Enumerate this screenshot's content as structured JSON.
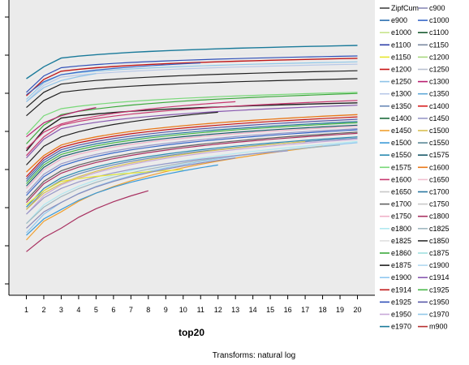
{
  "chart_data": {
    "type": "line",
    "xlabel": "top20",
    "ylabel": "",
    "caption": "Transforms: natural log",
    "x": [
      1,
      2,
      3,
      4,
      5,
      6,
      7,
      8,
      9,
      10,
      11,
      12,
      13,
      14,
      15,
      16,
      17,
      18,
      19,
      20
    ],
    "xlim": [
      0,
      21
    ],
    "ylim": [
      0,
      1
    ],
    "grid": false,
    "legend_position": "right",
    "legend_columns": [
      [
        {
          "name": "ZipfCum",
          "color": "#444444"
        },
        {
          "name": "e900",
          "color": "#2a6fb0"
        },
        {
          "name": "e1000",
          "color": "#c8e48c"
        },
        {
          "name": "e1100",
          "color": "#2d3fa8"
        },
        {
          "name": "e1150",
          "color": "#e6e62e"
        },
        {
          "name": "e1200",
          "color": "#c81414"
        },
        {
          "name": "e1250",
          "color": "#8fc3e8"
        },
        {
          "name": "e1300",
          "color": "#b8c8e8"
        },
        {
          "name": "e1350",
          "color": "#6a8ab8"
        },
        {
          "name": "e1400",
          "color": "#1a6a3a"
        },
        {
          "name": "e1450",
          "color": "#f0a030"
        },
        {
          "name": "e1500",
          "color": "#3a9ad8"
        },
        {
          "name": "e1550",
          "color": "#2a8ab0"
        },
        {
          "name": "e1575",
          "color": "#78d878"
        },
        {
          "name": "e1600",
          "color": "#c83870"
        },
        {
          "name": "e1650",
          "color": "#c8c8c8"
        },
        {
          "name": "e1700",
          "color": "#606060"
        },
        {
          "name": "e1750",
          "color": "#f0b0c8"
        },
        {
          "name": "e1800",
          "color": "#b0e8f0"
        },
        {
          "name": "e1825",
          "color": "#e0e0e0"
        },
        {
          "name": "e1860",
          "color": "#3aa83a"
        },
        {
          "name": "e1875",
          "color": "#202020"
        },
        {
          "name": "e1900",
          "color": "#90c8f0"
        },
        {
          "name": "e1914",
          "color": "#c01818"
        },
        {
          "name": "e1925",
          "color": "#3050b8"
        },
        {
          "name": "e1950",
          "color": "#c8a8d8"
        },
        {
          "name": "e1970",
          "color": "#1a7a9a"
        }
      ],
      [
        {
          "name": "c900",
          "color": "#8a8ab8"
        },
        {
          "name": "c1000",
          "color": "#3868c8"
        },
        {
          "name": "c1100",
          "color": "#185a30"
        },
        {
          "name": "c1150",
          "color": "#7a88a0"
        },
        {
          "name": "c1200",
          "color": "#a8d880"
        },
        {
          "name": "c1250",
          "color": "#b8c0d0"
        },
        {
          "name": "c1300",
          "color": "#b82070"
        },
        {
          "name": "c1350",
          "color": "#60a8d8"
        },
        {
          "name": "c1400",
          "color": "#d82020"
        },
        {
          "name": "c1450",
          "color": "#9898c8"
        },
        {
          "name": "c1500",
          "color": "#d8c050"
        },
        {
          "name": "c1550",
          "color": "#5a8898"
        },
        {
          "name": "c1575",
          "color": "#1a5a6a"
        },
        {
          "name": "c1600",
          "color": "#e87818"
        },
        {
          "name": "c1650",
          "color": "#f0c0d0"
        },
        {
          "name": "c1700",
          "color": "#2a78a0"
        },
        {
          "name": "c1750",
          "color": "#c8c8c8"
        },
        {
          "name": "c1800",
          "color": "#a83060"
        },
        {
          "name": "c1825",
          "color": "#a0b8c0"
        },
        {
          "name": "c1850",
          "color": "#303030"
        },
        {
          "name": "c1875",
          "color": "#a0e0e0"
        },
        {
          "name": "c1900",
          "color": "#b0d8f0"
        },
        {
          "name": "c1914",
          "color": "#8858b0"
        },
        {
          "name": "c1925",
          "color": "#48b848"
        },
        {
          "name": "c1950",
          "color": "#5858a8"
        },
        {
          "name": "c1970",
          "color": "#90c8e8"
        },
        {
          "name": "m900",
          "color": "#b83030"
        }
      ]
    ],
    "lines": [
      {
        "color": "#1a7a9a",
        "width": 1.4,
        "y0": 0.858,
        "y1": 0.909,
        "y2": 0.946,
        "y20": 1.0
      },
      {
        "color": "#e8e8e8",
        "width": 1.2,
        "y0": 0.83,
        "y1": 0.89,
        "y2": 0.93,
        "y20": 0.97
      },
      {
        "color": "#3050b8",
        "width": 1.2,
        "y0": 0.8,
        "y1": 0.87,
        "y2": 0.905,
        "y20": 0.955
      },
      {
        "color": "#c01818",
        "width": 1.4,
        "y0": 0.785,
        "y1": 0.855,
        "y2": 0.89,
        "y20": 0.945
      },
      {
        "color": "#90c8e8",
        "width": 1.2,
        "y0": 0.77,
        "y1": 0.84,
        "y2": 0.875,
        "y20": 0.93
      },
      {
        "color": "#b8c8e8",
        "width": 1.2,
        "y0": 0.76,
        "y1": 0.83,
        "y2": 0.865,
        "y20": 0.92
      },
      {
        "color": "#202020",
        "width": 1.2,
        "y0": 0.735,
        "y1": 0.8,
        "y2": 0.835,
        "y20": 0.892
      },
      {
        "color": "#202020",
        "width": 1.2,
        "y0": 0.7,
        "y1": 0.765,
        "y2": 0.8,
        "y20": 0.858
      },
      {
        "color": "#78d878",
        "width": 1.2,
        "y0": 0.62,
        "y1": 0.7,
        "y2": 0.73,
        "y20": 0.8
      },
      {
        "color": "#3aa83a",
        "width": 1.2,
        "y0": 0.58,
        "y1": 0.66,
        "y2": 0.705,
        "y20": 0.795
      },
      {
        "color": "#202020",
        "width": 1.4,
        "y0": 0.55,
        "y1": 0.64,
        "y2": 0.69,
        "y20": 0.755
      },
      {
        "color": "#c83870",
        "width": 1.2,
        "y0": 0.53,
        "y1": 0.61,
        "y2": 0.66,
        "y20": 0.765
      },
      {
        "color": "#8858b0",
        "width": 1.2,
        "y0": 0.52,
        "y1": 0.6,
        "y2": 0.645,
        "y20": 0.745
      },
      {
        "color": "#e87818",
        "width": 1.3,
        "y0": 0.46,
        "y1": 0.53,
        "y2": 0.575,
        "y20": 0.705
      },
      {
        "color": "#c81414",
        "width": 1.2,
        "y0": 0.44,
        "y1": 0.52,
        "y2": 0.565,
        "y20": 0.695
      },
      {
        "color": "#5858a8",
        "width": 1.2,
        "y0": 0.43,
        "y1": 0.51,
        "y2": 0.555,
        "y20": 0.685
      },
      {
        "color": "#2a78a0",
        "width": 1.2,
        "y0": 0.42,
        "y1": 0.5,
        "y2": 0.545,
        "y20": 0.675
      },
      {
        "color": "#48b848",
        "width": 1.2,
        "y0": 0.41,
        "y1": 0.49,
        "y2": 0.535,
        "y20": 0.67
      },
      {
        "color": "#1a5a6a",
        "width": 1.2,
        "y0": 0.4,
        "y1": 0.48,
        "y2": 0.525,
        "y20": 0.66
      },
      {
        "color": "#f0b0c8",
        "width": 1.2,
        "y0": 0.39,
        "y1": 0.47,
        "y2": 0.515,
        "y20": 0.655
      },
      {
        "color": "#9898c8",
        "width": 1.2,
        "y0": 0.37,
        "y1": 0.45,
        "y2": 0.495,
        "y20": 0.645
      },
      {
        "color": "#3868c8",
        "width": 1.2,
        "y0": 0.36,
        "y1": 0.44,
        "y2": 0.485,
        "y20": 0.64
      },
      {
        "color": "#606060",
        "width": 1.2,
        "y0": 0.34,
        "y1": 0.42,
        "y2": 0.465,
        "y20": 0.63
      },
      {
        "color": "#a83060",
        "width": 1.2,
        "y0": 0.33,
        "y1": 0.41,
        "y2": 0.455,
        "y20": 0.625
      },
      {
        "color": "#2a8ab0",
        "width": 1.2,
        "y0": 0.31,
        "y1": 0.39,
        "y2": 0.435,
        "y20": 0.61
      },
      {
        "color": "#6a8ab8",
        "width": 1.2,
        "y0": 0.3,
        "y1": 0.38,
        "y2": 0.425,
        "y20": 0.605
      },
      {
        "color": "#c8a8d8",
        "width": 1.2,
        "y0": 0.28,
        "y1": 0.36,
        "y2": 0.405,
        "y20": 0.6
      },
      {
        "color": "#b0e8f0",
        "width": 1.2,
        "y0": 0.24,
        "y1": 0.32,
        "y2": 0.365,
        "y20": 0.59
      },
      {
        "color": "#90c8f0",
        "width": 1.2,
        "y0": 0.2,
        "y1": 0.28,
        "y2": 0.33,
        "y20": 0.585
      }
    ],
    "partial_lines": [
      {
        "color": "#f0a030",
        "width": 1.2,
        "y0": 0.17,
        "y1": 0.25,
        "y2": 0.29,
        "xend": 18,
        "y_end": 0.57
      },
      {
        "color": "#a0b8c0",
        "width": 1.2,
        "y0": 0.24,
        "y1": 0.31,
        "y2": 0.355,
        "xend": 19,
        "y_end": 0.575
      },
      {
        "color": "#9898c8",
        "width": 1.2,
        "y0": 0.28,
        "y1": 0.35,
        "y2": 0.39,
        "xend": 16,
        "y_end": 0.55
      },
      {
        "color": "#3a9ad8",
        "width": 1.2,
        "y0": 0.19,
        "y1": 0.26,
        "y2": 0.3,
        "xend": 12,
        "y_end": 0.49
      },
      {
        "color": "#e6e62e",
        "width": 1.2,
        "y0": 0.32,
        "y1": 0.38,
        "y2": 0.42,
        "xend": 10,
        "y_end": 0.47
      },
      {
        "color": "#a83060",
        "width": 1.2,
        "y0": 0.12,
        "y1": 0.18,
        "y2": 0.22,
        "xend": 8,
        "y_end": 0.38
      },
      {
        "color": "#8a8ab8",
        "width": 1.2,
        "y0": 0.22,
        "y1": 0.29,
        "y2": 0.33,
        "xend": 13,
        "y_end": 0.52
      },
      {
        "color": "#202020",
        "width": 1.2,
        "y0": 0.49,
        "y1": 0.57,
        "y2": 0.61,
        "xend": 12,
        "y_end": 0.715
      },
      {
        "color": "#c83870",
        "width": 1.2,
        "y0": 0.56,
        "y1": 0.63,
        "y2": 0.665,
        "xend": 13,
        "y_end": 0.76
      },
      {
        "color": "#3868c8",
        "width": 1.2,
        "y0": 0.79,
        "y1": 0.845,
        "y2": 0.875,
        "xend": 11,
        "y_end": 0.925
      },
      {
        "color": "#8fc3e8",
        "width": 1.2,
        "y0": 0.76,
        "y1": 0.82,
        "y2": 0.85,
        "xend": 5,
        "y_end": 0.88
      },
      {
        "color": "#b82070",
        "width": 1.2,
        "y0": 0.61,
        "y1": 0.67,
        "y2": 0.7,
        "xend": 5,
        "y_end": 0.735
      },
      {
        "color": "#d8c050",
        "width": 1.2,
        "y0": 0.3,
        "y1": 0.37,
        "y2": 0.41,
        "xend": 17,
        "y_end": 0.59
      }
    ]
  }
}
